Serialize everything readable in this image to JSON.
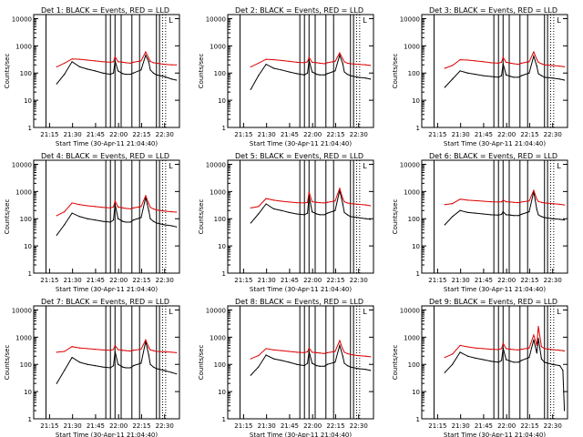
{
  "figure": {
    "xlabel": "Start Time (30-Apr-11 21:04:40)",
    "ylabel": "Counts/sec",
    "xticks": [
      "21:15",
      "21:30",
      "21:45",
      "22:00",
      "22:15",
      "22:30"
    ],
    "yticks": [
      "1",
      "10",
      "100",
      "1000",
      "10000"
    ],
    "colors": {
      "black_series": "#000000",
      "red_series": "#dd0000",
      "axes": "#000000",
      "background": "#ffffff"
    },
    "legend_letter": "L"
  },
  "chart_data": [
    {
      "type": "line",
      "title": "Det 1: BLACK = Events, RED = LLD",
      "x_minutes": [
        4.5,
        10,
        15,
        20,
        25,
        30,
        35,
        40,
        45,
        50,
        52,
        53,
        55,
        58,
        60,
        63,
        65,
        70,
        73,
        75,
        76,
        78,
        80,
        85,
        90,
        93
      ],
      "series": [
        {
          "name": "Events",
          "values": [
            null,
            null,
            40,
            90,
            260,
            170,
            140,
            120,
            100,
            90,
            100,
            280,
            120,
            95,
            90,
            90,
            100,
            130,
            450,
            260,
            130,
            100,
            85,
            75,
            60,
            55
          ]
        },
        {
          "name": "LLD",
          "values": [
            null,
            null,
            170,
            230,
            330,
            320,
            300,
            280,
            260,
            250,
            260,
            400,
            260,
            250,
            240,
            230,
            250,
            280,
            600,
            350,
            270,
            240,
            230,
            210,
            200,
            200
          ]
        }
      ],
      "ylim": [
        1,
        10000
      ],
      "yscale": "log"
    },
    {
      "type": "line",
      "title": "Det 2: BLACK = Events, RED = LLD",
      "x_minutes": [
        4.5,
        10,
        15,
        20,
        25,
        30,
        35,
        40,
        45,
        50,
        52,
        53,
        55,
        58,
        60,
        63,
        65,
        70,
        73,
        75,
        76,
        78,
        80,
        85,
        90,
        93
      ],
      "series": [
        {
          "name": "Events",
          "values": [
            null,
            null,
            25,
            80,
            210,
            150,
            130,
            110,
            95,
            85,
            100,
            300,
            110,
            90,
            85,
            85,
            95,
            120,
            450,
            220,
            110,
            90,
            80,
            70,
            65,
            60
          ]
        },
        {
          "name": "LLD",
          "values": [
            null,
            null,
            170,
            230,
            320,
            310,
            290,
            270,
            250,
            240,
            260,
            380,
            250,
            240,
            230,
            220,
            240,
            270,
            550,
            330,
            260,
            230,
            220,
            210,
            200,
            190
          ]
        }
      ],
      "ylim": [
        1,
        10000
      ],
      "yscale": "log"
    },
    {
      "type": "line",
      "title": "Det 3: BLACK = Events, RED = LLD",
      "x_minutes": [
        4.5,
        10,
        15,
        20,
        25,
        30,
        35,
        40,
        45,
        50,
        52,
        53,
        55,
        58,
        60,
        63,
        65,
        70,
        73,
        75,
        76,
        78,
        80,
        85,
        90,
        93
      ],
      "series": [
        {
          "name": "Events",
          "values": [
            null,
            null,
            30,
            60,
            120,
            100,
            90,
            80,
            75,
            70,
            80,
            220,
            85,
            75,
            70,
            70,
            80,
            100,
            420,
            180,
            95,
            80,
            70,
            65,
            60,
            55
          ]
        },
        {
          "name": "LLD",
          "values": [
            null,
            null,
            150,
            190,
            310,
            300,
            280,
            260,
            240,
            230,
            250,
            380,
            250,
            230,
            220,
            210,
            230,
            260,
            600,
            320,
            250,
            220,
            200,
            190,
            180,
            170
          ]
        }
      ],
      "ylim": [
        1,
        10000
      ],
      "yscale": "log"
    },
    {
      "type": "line",
      "title": "Det 4: BLACK = Events, RED = LLD",
      "x_minutes": [
        4.5,
        10,
        15,
        20,
        25,
        30,
        35,
        40,
        45,
        50,
        52,
        53,
        55,
        58,
        60,
        63,
        65,
        70,
        73,
        75,
        76,
        78,
        80,
        85,
        90,
        93
      ],
      "series": [
        {
          "name": "Events",
          "values": [
            null,
            null,
            25,
            60,
            160,
            120,
            100,
            90,
            80,
            75,
            90,
            350,
            100,
            80,
            75,
            75,
            90,
            110,
            600,
            200,
            100,
            80,
            70,
            60,
            55,
            50
          ]
        },
        {
          "name": "LLD",
          "values": [
            null,
            null,
            130,
            180,
            380,
            330,
            300,
            280,
            260,
            250,
            270,
            450,
            270,
            250,
            240,
            230,
            250,
            280,
            700,
            360,
            260,
            230,
            210,
            190,
            180,
            175
          ]
        }
      ],
      "ylim": [
        1,
        10000
      ],
      "yscale": "log"
    },
    {
      "type": "line",
      "title": "Det 5: BLACK = Events, RED = LLD",
      "x_minutes": [
        4.5,
        10,
        15,
        20,
        25,
        30,
        35,
        40,
        45,
        50,
        52,
        53,
        55,
        58,
        60,
        63,
        65,
        70,
        73,
        75,
        76,
        78,
        80,
        85,
        90,
        93
      ],
      "series": [
        {
          "name": "Events",
          "values": [
            null,
            null,
            70,
            150,
            350,
            230,
            200,
            170,
            150,
            140,
            160,
            700,
            180,
            150,
            140,
            140,
            160,
            200,
            1100,
            350,
            170,
            140,
            120,
            110,
            100,
            95
          ]
        },
        {
          "name": "LLD",
          "values": [
            null,
            null,
            250,
            280,
            550,
            480,
            440,
            410,
            390,
            380,
            400,
            950,
            420,
            400,
            390,
            380,
            400,
            450,
            1300,
            550,
            420,
            380,
            360,
            340,
            320,
            300
          ]
        }
      ],
      "ylim": [
        1,
        10000
      ],
      "yscale": "log"
    },
    {
      "type": "line",
      "title": "Det 6: BLACK = Events, RED = LLD",
      "x_minutes": [
        4.5,
        10,
        15,
        20,
        25,
        30,
        35,
        40,
        45,
        50,
        52,
        53,
        55,
        58,
        60,
        63,
        65,
        70,
        73,
        75,
        76,
        78,
        80,
        85,
        90,
        93
      ],
      "series": [
        {
          "name": "Events",
          "values": [
            null,
            null,
            60,
            120,
            200,
            170,
            160,
            150,
            140,
            135,
            145,
            180,
            140,
            135,
            130,
            130,
            145,
            180,
            1000,
            220,
            140,
            120,
            110,
            100,
            95,
            90
          ]
        },
        {
          "name": "LLD",
          "values": [
            null,
            null,
            330,
            360,
            520,
            480,
            460,
            440,
            420,
            410,
            420,
            480,
            420,
            410,
            400,
            390,
            410,
            450,
            1100,
            520,
            430,
            400,
            380,
            360,
            340,
            320
          ]
        }
      ],
      "ylim": [
        1,
        10000
      ],
      "yscale": "log"
    },
    {
      "type": "line",
      "title": "Det 7: BLACK = Events, RED = LLD",
      "x_minutes": [
        4.5,
        10,
        15,
        20,
        25,
        30,
        35,
        40,
        45,
        50,
        52,
        53,
        55,
        58,
        60,
        63,
        65,
        70,
        73,
        75,
        76,
        78,
        80,
        85,
        90,
        93
      ],
      "series": [
        {
          "name": "Events",
          "values": [
            null,
            null,
            20,
            60,
            180,
            120,
            100,
            90,
            80,
            75,
            90,
            300,
            100,
            80,
            75,
            75,
            90,
            110,
            700,
            220,
            100,
            80,
            70,
            60,
            50,
            45
          ]
        },
        {
          "name": "LLD",
          "values": [
            null,
            null,
            280,
            300,
            450,
            400,
            380,
            360,
            340,
            330,
            350,
            500,
            350,
            330,
            320,
            310,
            330,
            360,
            800,
            420,
            340,
            320,
            300,
            290,
            280,
            270
          ]
        }
      ],
      "ylim": [
        1,
        10000
      ],
      "yscale": "log"
    },
    {
      "type": "line",
      "title": "Det 8: BLACK = Events, RED = LLD",
      "x_minutes": [
        4.5,
        10,
        15,
        20,
        25,
        30,
        35,
        40,
        45,
        50,
        52,
        53,
        55,
        58,
        60,
        63,
        65,
        70,
        73,
        75,
        76,
        78,
        80,
        85,
        90,
        93
      ],
      "series": [
        {
          "name": "Events",
          "values": [
            null,
            null,
            40,
            80,
            220,
            160,
            140,
            120,
            100,
            90,
            110,
            300,
            110,
            90,
            85,
            85,
            100,
            120,
            500,
            200,
            110,
            90,
            80,
            70,
            65,
            60
          ]
        },
        {
          "name": "LLD",
          "values": [
            null,
            null,
            160,
            210,
            380,
            340,
            320,
            300,
            280,
            270,
            290,
            400,
            280,
            270,
            260,
            250,
            270,
            300,
            750,
            360,
            280,
            250,
            230,
            210,
            200,
            190
          ]
        }
      ],
      "ylim": [
        1,
        10000
      ],
      "yscale": "log"
    },
    {
      "type": "line",
      "title": "Det 9: BLACK = Events, RED = LLD",
      "x_minutes": [
        4.5,
        10,
        15,
        20,
        25,
        30,
        35,
        40,
        45,
        50,
        52,
        53,
        55,
        58,
        60,
        63,
        65,
        70,
        73,
        75,
        76,
        78,
        80,
        85,
        90,
        92,
        93
      ],
      "series": [
        {
          "name": "Events",
          "values": [
            null,
            null,
            50,
            100,
            280,
            200,
            170,
            150,
            130,
            120,
            140,
            400,
            150,
            130,
            120,
            120,
            140,
            180,
            800,
            260,
            900,
            160,
            120,
            100,
            90,
            60,
            2
          ]
        },
        {
          "name": "LLD",
          "values": [
            null,
            null,
            180,
            240,
            500,
            440,
            400,
            380,
            360,
            350,
            380,
            600,
            380,
            360,
            350,
            340,
            360,
            400,
            1200,
            500,
            2500,
            450,
            380,
            350,
            330,
            320,
            310
          ]
        }
      ],
      "ylim": [
        1,
        10000
      ],
      "yscale": "log"
    }
  ]
}
